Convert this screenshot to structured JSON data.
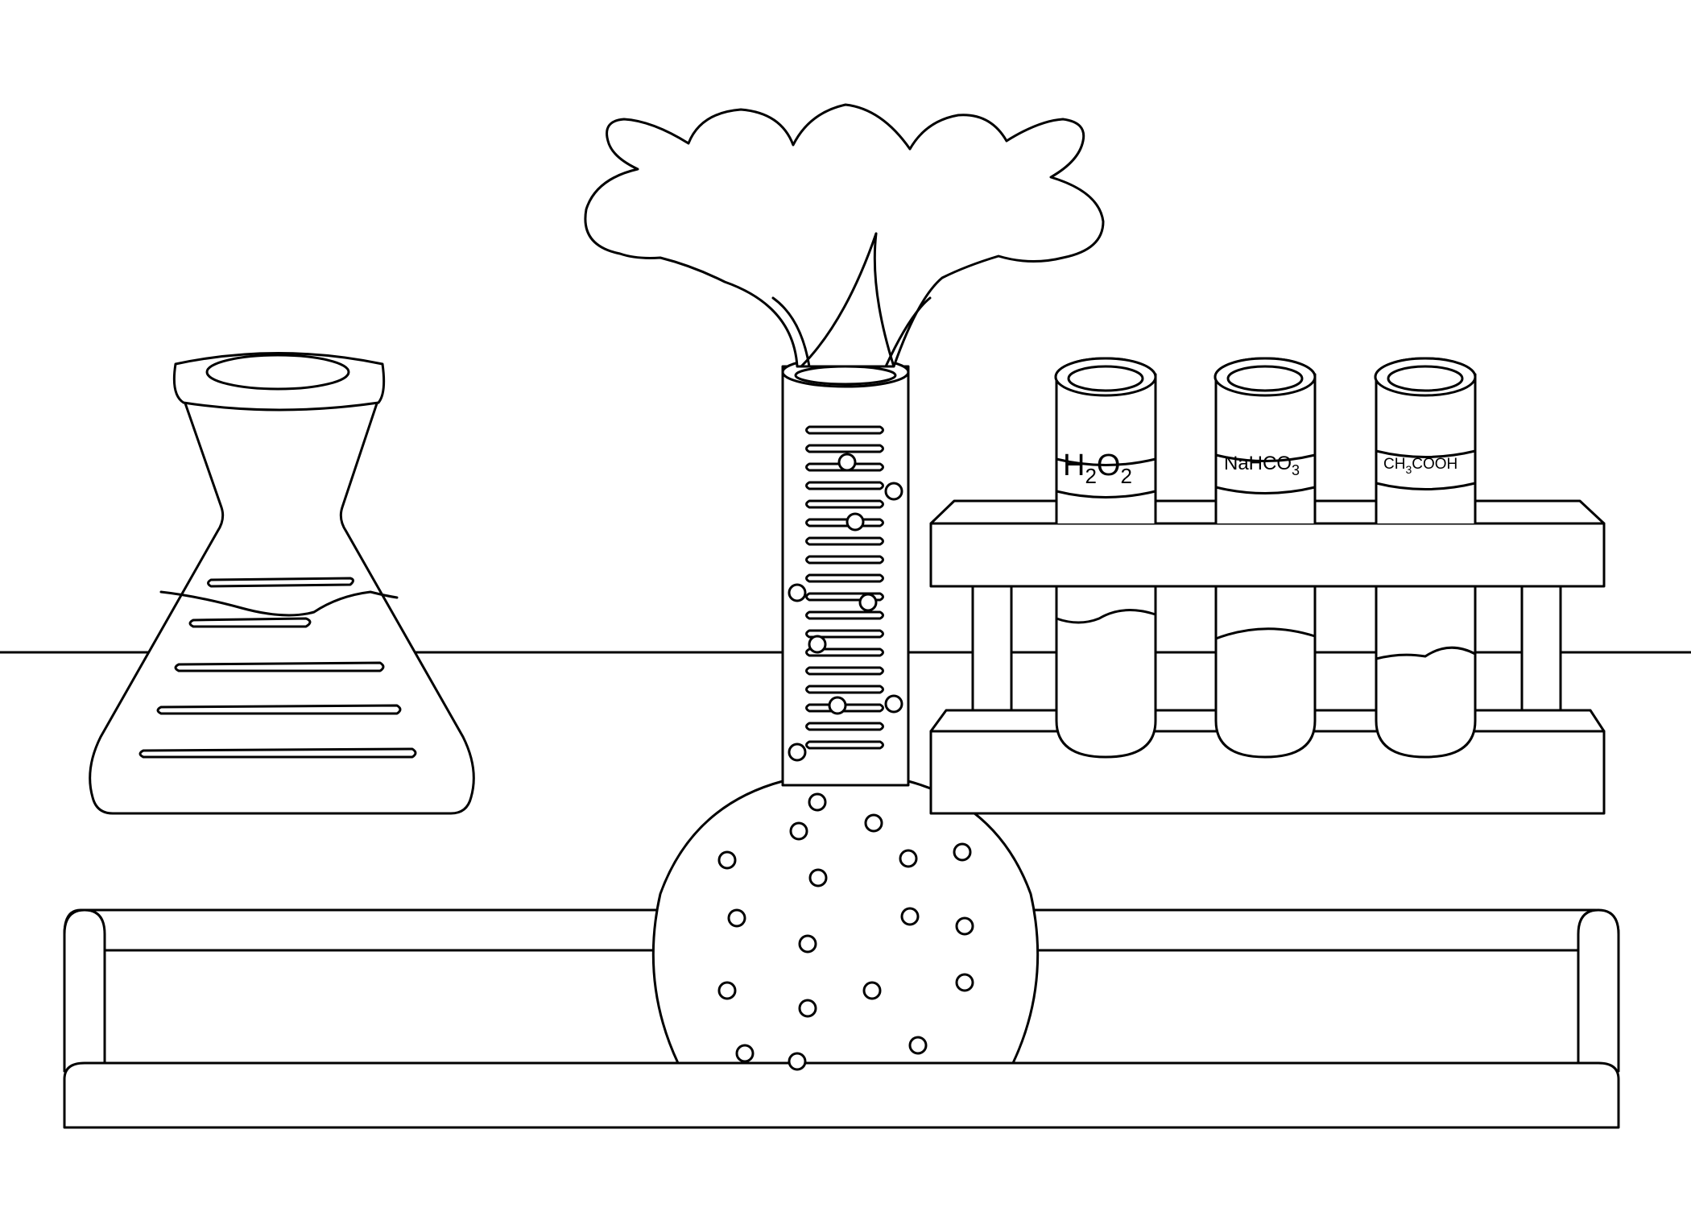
{
  "scene": {
    "colors": {
      "line": "#000000",
      "background": "#ffffff"
    },
    "tube_labels": {
      "h2o2": {
        "base1": "H",
        "sub1": "2",
        "base2": "O",
        "sub2": "2"
      },
      "nahco3": {
        "base": "NaHCO",
        "sub": "3"
      },
      "ch3cooh": {
        "base1": "CH",
        "sub1": "3",
        "base2": "COOH"
      }
    }
  }
}
